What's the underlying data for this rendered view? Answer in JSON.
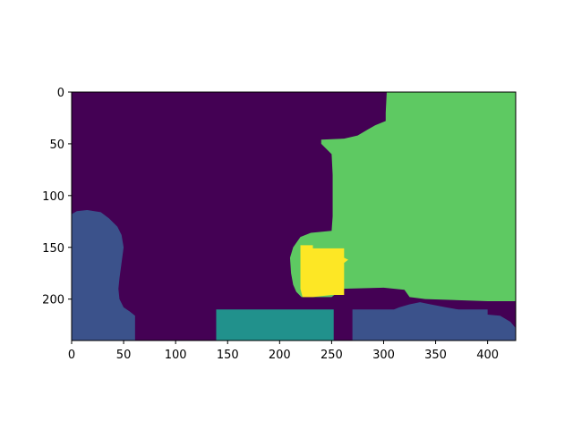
{
  "chart_data": {
    "type": "heatmap",
    "title": "",
    "xlabel": "",
    "ylabel": "",
    "image_size": {
      "width": 427,
      "height": 240
    },
    "xlim": [
      0,
      427
    ],
    "ylim": [
      240,
      0
    ],
    "x_ticks": [
      0,
      50,
      100,
      150,
      200,
      250,
      300,
      350,
      400
    ],
    "y_ticks": [
      0,
      50,
      100,
      150,
      200
    ],
    "grid": false,
    "legend": "none",
    "colormap": "viridis",
    "classes": [
      {
        "id": 0,
        "color": "#440154"
      },
      {
        "id": 1,
        "color": "#3b528b"
      },
      {
        "id": 2,
        "color": "#21918c"
      },
      {
        "id": 3,
        "color": "#5ec962"
      },
      {
        "id": 4,
        "color": "#fde725"
      }
    ],
    "regions": [
      {
        "class_id": 0,
        "points": [
          [
            0,
            0
          ],
          [
            427,
            0
          ],
          [
            427,
            240
          ],
          [
            0,
            240
          ]
        ]
      },
      {
        "class_id": 3,
        "points": [
          [
            303,
            0
          ],
          [
            427,
            0
          ],
          [
            427,
            202
          ],
          [
            400,
            202
          ],
          [
            340,
            200
          ],
          [
            325,
            198
          ],
          [
            320,
            191
          ],
          [
            300,
            189
          ],
          [
            260,
            190
          ],
          [
            250,
            198
          ],
          [
            221,
            198
          ],
          [
            216,
            193
          ],
          [
            213,
            186
          ],
          [
            211,
            175
          ],
          [
            210,
            160
          ],
          [
            213,
            150
          ],
          [
            220,
            140
          ],
          [
            230,
            136
          ],
          [
            250,
            134
          ],
          [
            251,
            120
          ],
          [
            251,
            80
          ],
          [
            250,
            60
          ],
          [
            240,
            50
          ],
          [
            240,
            46
          ],
          [
            262,
            45
          ],
          [
            275,
            42
          ],
          [
            285,
            36
          ],
          [
            292,
            32
          ],
          [
            302,
            28
          ],
          [
            302,
            20
          ]
        ]
      },
      {
        "class_id": 4,
        "points": [
          [
            220,
            148
          ],
          [
            232,
            148
          ],
          [
            232,
            151
          ],
          [
            262,
            151
          ],
          [
            262,
            160
          ],
          [
            266,
            162
          ],
          [
            262,
            165
          ],
          [
            262,
            196
          ],
          [
            250,
            196
          ],
          [
            232,
            198
          ],
          [
            222,
            198
          ],
          [
            220,
            190
          ]
        ]
      },
      {
        "class_id": 1,
        "points": [
          [
            0,
            118
          ],
          [
            5,
            115
          ],
          [
            15,
            114
          ],
          [
            28,
            116
          ],
          [
            36,
            122
          ],
          [
            44,
            130
          ],
          [
            48,
            138
          ],
          [
            50,
            150
          ],
          [
            48,
            165
          ],
          [
            46,
            180
          ],
          [
            45,
            190
          ],
          [
            46,
            200
          ],
          [
            50,
            208
          ],
          [
            56,
            212
          ],
          [
            61,
            216
          ],
          [
            61,
            240
          ],
          [
            0,
            240
          ]
        ]
      },
      {
        "class_id": 2,
        "points": [
          [
            139,
            210
          ],
          [
            252,
            210
          ],
          [
            252,
            240
          ],
          [
            139,
            240
          ]
        ]
      },
      {
        "class_id": 1,
        "points": [
          [
            270,
            210
          ],
          [
            310,
            210
          ],
          [
            315,
            208
          ],
          [
            325,
            205
          ],
          [
            335,
            203
          ],
          [
            345,
            205
          ],
          [
            360,
            208
          ],
          [
            372,
            210
          ],
          [
            400,
            210
          ],
          [
            400,
            215
          ],
          [
            412,
            216
          ],
          [
            422,
            222
          ],
          [
            427,
            228
          ],
          [
            427,
            240
          ],
          [
            270,
            240
          ]
        ]
      }
    ]
  }
}
